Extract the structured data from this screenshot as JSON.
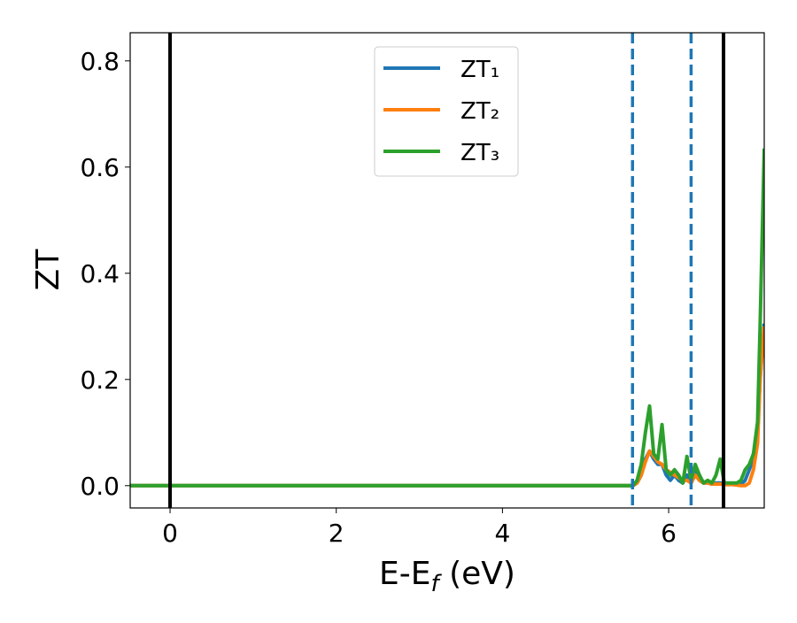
{
  "chart_data": {
    "type": "line",
    "xlabel": [
      "E-E",
      "f",
      " (eV)"
    ],
    "ylabel": "ZT",
    "x": [
      -0.48,
      5.5,
      5.57,
      5.62,
      5.67,
      5.72,
      5.77,
      5.82,
      5.87,
      5.92,
      5.97,
      6.02,
      6.07,
      6.12,
      6.17,
      6.22,
      6.27,
      6.32,
      6.37,
      6.42,
      6.47,
      6.52,
      6.57,
      6.62,
      6.67,
      6.72,
      6.77,
      6.82,
      6.87,
      6.92,
      6.97,
      7.02,
      7.07,
      7.1,
      7.15
    ],
    "series": [
      {
        "name": "ZT₁",
        "color": "#1f77b4",
        "values": [
          0,
          0,
          0,
          0.005,
          0.02,
          0.05,
          0.065,
          0.05,
          0.04,
          0.04,
          0.02,
          0.01,
          0.02,
          0.01,
          0.005,
          0.02,
          0.005,
          0.03,
          0.01,
          0.005,
          0.005,
          0.003,
          0.005,
          0.005,
          0.003,
          0.003,
          0.003,
          0.002,
          0.002,
          0.01,
          0.03,
          0.05,
          0.1,
          0.2,
          0.305
        ]
      },
      {
        "name": "ZT₂",
        "color": "#ff7f0e",
        "values": [
          0,
          0,
          0,
          0.005,
          0.02,
          0.045,
          0.065,
          0.055,
          0.045,
          0.04,
          0.03,
          0.025,
          0.02,
          0.015,
          0.01,
          0.01,
          0.005,
          0.02,
          0.01,
          0.005,
          0.005,
          0.003,
          0.003,
          0.003,
          0.002,
          0.002,
          0.002,
          0.001,
          0,
          0,
          0.005,
          0.03,
          0.08,
          0.2,
          0.3
        ]
      },
      {
        "name": "ZT₃",
        "color": "#2ca02c",
        "values": [
          0,
          0,
          0,
          0.01,
          0.04,
          0.1,
          0.15,
          0.06,
          0.05,
          0.115,
          0.03,
          0.02,
          0.03,
          0.02,
          0.005,
          0.055,
          0.01,
          0.04,
          0.02,
          0.005,
          0.01,
          0.005,
          0.02,
          0.05,
          0.005,
          0.005,
          0.005,
          0.005,
          0.01,
          0.03,
          0.04,
          0.06,
          0.12,
          0.3,
          0.635
        ]
      }
    ],
    "vlines": [
      {
        "x": 0,
        "color": "#000000",
        "dashed": false
      },
      {
        "x": 6.66,
        "color": "#000000",
        "dashed": false
      },
      {
        "x": 5.565,
        "color": "#1f77b4",
        "dashed": true
      },
      {
        "x": 6.27,
        "color": "#1f77b4",
        "dashed": true
      }
    ],
    "xlim": [
      -0.48,
      7.15
    ],
    "ylim": [
      -0.042,
      0.853
    ],
    "xticks": [
      0,
      2,
      4,
      6
    ],
    "yticks": [
      {
        "value": 0,
        "label": "0.0"
      },
      0.2,
      0.4,
      0.6,
      0.8
    ],
    "legend": "upper center"
  }
}
